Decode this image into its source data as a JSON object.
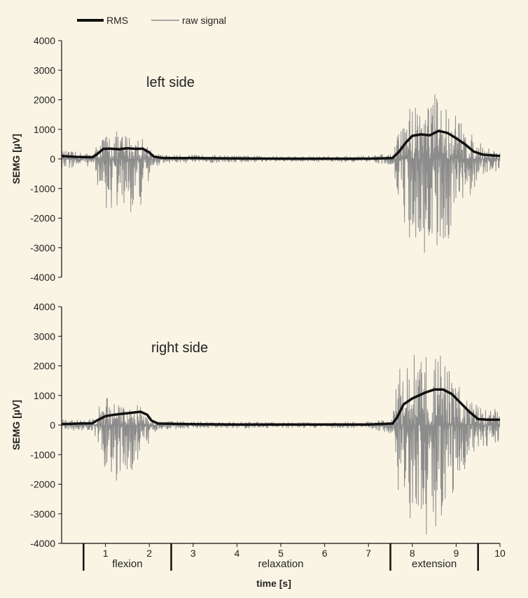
{
  "chart_data": {
    "type": "line",
    "legend": [
      {
        "name": "RMS",
        "color": "#111111"
      },
      {
        "name": "raw signal",
        "color": "#8c8c8c"
      }
    ],
    "xlabel": "time [s]",
    "xlim": [
      0,
      10
    ],
    "xticks": [
      "1",
      "2",
      "3",
      "4",
      "5",
      "6",
      "7",
      "8",
      "9",
      "10"
    ],
    "phases": [
      {
        "label": "flexion",
        "start": 0.5,
        "end": 2.5
      },
      {
        "label": "relaxation",
        "start": 2.5,
        "end": 7.5
      },
      {
        "label": "extension",
        "start": 7.5,
        "end": 9.5
      }
    ],
    "panels": [
      {
        "annotation": "left side",
        "ylabel": "SEMG [µV]",
        "ylim": [
          -4000,
          4000
        ],
        "yticks": [
          "4000",
          "3000",
          "2000",
          "1000",
          "0",
          "-1000",
          "-2000",
          "-3000",
          "-4000"
        ],
        "rms": {
          "x": [
            0,
            0.3,
            0.7,
            0.8,
            0.95,
            1.1,
            1.3,
            1.5,
            1.7,
            1.85,
            2.0,
            2.1,
            2.3,
            3,
            4,
            5,
            6,
            7,
            7.55,
            7.7,
            7.85,
            8.0,
            8.2,
            8.4,
            8.6,
            8.8,
            9.0,
            9.2,
            9.4,
            9.6,
            10
          ],
          "y": [
            100,
            70,
            60,
            150,
            340,
            350,
            330,
            360,
            340,
            350,
            220,
            80,
            30,
            30,
            20,
            10,
            10,
            10,
            30,
            250,
            550,
            780,
            830,
            800,
            950,
            880,
            700,
            500,
            250,
            150,
            100
          ]
        },
        "raw_envelope": {
          "x": [
            0,
            0.3,
            0.7,
            0.8,
            1.0,
            1.3,
            1.6,
            1.9,
            2.1,
            2.3,
            3,
            4,
            5,
            6,
            7,
            7.55,
            7.7,
            7.9,
            8.2,
            8.5,
            8.7,
            9.0,
            9.3,
            9.6,
            10
          ],
          "pos": [
            300,
            250,
            200,
            500,
            900,
            950,
            850,
            700,
            250,
            150,
            150,
            120,
            100,
            100,
            120,
            200,
            1000,
            1800,
            2300,
            2300,
            2100,
            1600,
            900,
            500,
            300
          ],
          "neg": [
            -400,
            -300,
            -250,
            -800,
            -1900,
            -1800,
            -1900,
            -1600,
            -300,
            -150,
            -150,
            -120,
            -100,
            -100,
            -120,
            -200,
            -1600,
            -2700,
            -3100,
            -3400,
            -3000,
            -2300,
            -1300,
            -600,
            -500
          ]
        }
      },
      {
        "annotation": "right side",
        "ylabel": "SEMG [µV]",
        "ylim": [
          -4000,
          4000
        ],
        "yticks": [
          "4000",
          "3000",
          "2000",
          "1000",
          "0",
          "-1000",
          "-2000",
          "-3000",
          "-4000"
        ],
        "rms": {
          "x": [
            0,
            0.4,
            0.7,
            0.8,
            1.0,
            1.2,
            1.5,
            1.8,
            1.95,
            2.05,
            2.2,
            3,
            4,
            5,
            6,
            7,
            7.55,
            7.65,
            7.8,
            8.0,
            8.3,
            8.5,
            8.7,
            8.9,
            9.1,
            9.3,
            9.5,
            9.7,
            10
          ],
          "y": [
            30,
            50,
            60,
            150,
            300,
            350,
            400,
            450,
            350,
            150,
            50,
            30,
            20,
            20,
            20,
            20,
            50,
            250,
            700,
            900,
            1100,
            1200,
            1200,
            1050,
            750,
            450,
            200,
            180,
            180
          ]
        },
        "raw_envelope": {
          "x": [
            0,
            0.3,
            0.7,
            0.8,
            1.0,
            1.3,
            1.6,
            1.8,
            1.95,
            2.05,
            2.3,
            3,
            4,
            5,
            6,
            7,
            7.55,
            7.65,
            7.9,
            8.2,
            8.5,
            8.7,
            9.0,
            9.3,
            9.6,
            10
          ],
          "pos": [
            200,
            200,
            200,
            500,
            1050,
            700,
            800,
            700,
            500,
            200,
            150,
            130,
            120,
            100,
            100,
            120,
            200,
            1800,
            2400,
            2400,
            2600,
            2300,
            1600,
            800,
            600,
            600
          ],
          "neg": [
            -200,
            -200,
            -200,
            -900,
            -1700,
            -2000,
            -1800,
            -1400,
            -1000,
            -300,
            -150,
            -130,
            -120,
            -100,
            -100,
            -120,
            -300,
            -3000,
            -3300,
            -3700,
            -3800,
            -3200,
            -2200,
            -1100,
            -800,
            -600
          ]
        }
      }
    ]
  }
}
